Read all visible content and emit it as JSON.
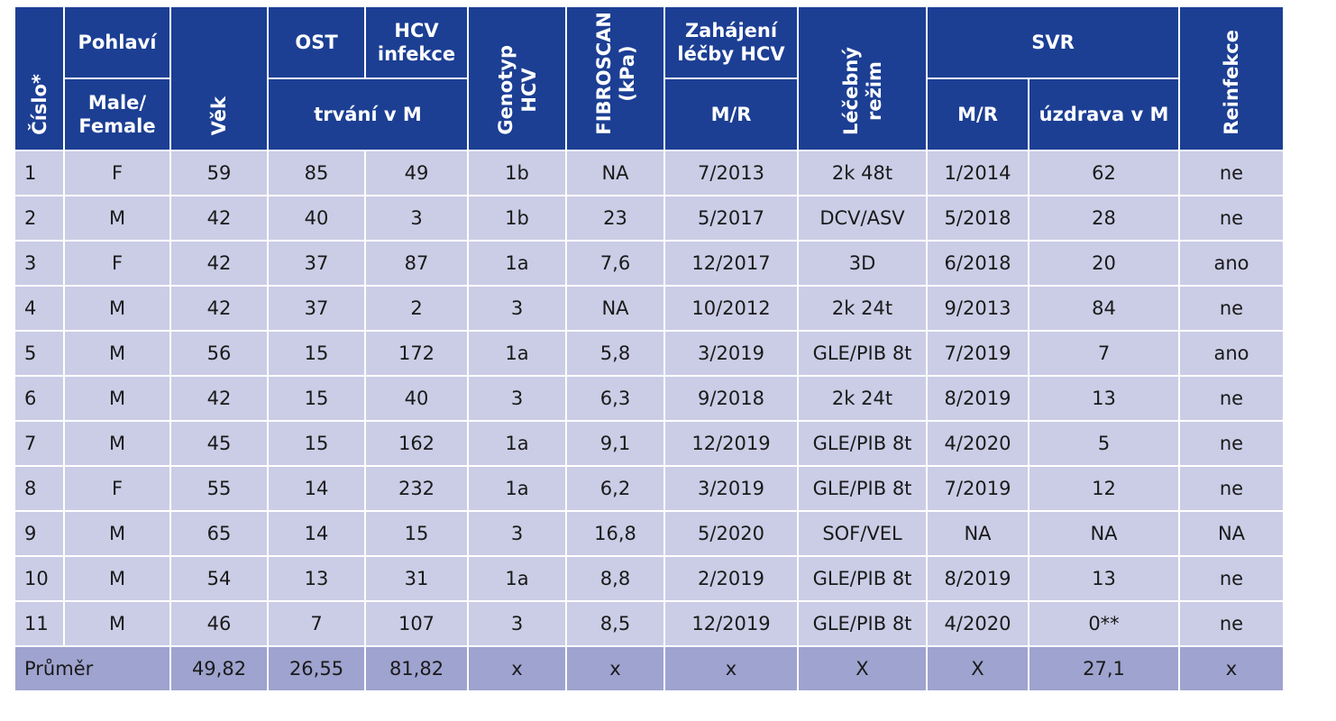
{
  "header": {
    "cislo": "Číslo*",
    "pohlavi": "Pohlaví",
    "pohlavi_sub_1": "Male/",
    "pohlavi_sub_2": "Female",
    "vek": "Věk",
    "ost": "OST",
    "hcv_1": "HCV",
    "hcv_2": "infekce",
    "trvani": "trvání v M",
    "genotyp_1": "Genotyp",
    "genotyp_2": "HCV",
    "fibroscan_1": "FIBROSCAN",
    "fibroscan_2": "(kPa)",
    "zahajeni_1": "Zahájení",
    "zahajeni_2": "léčby HCV",
    "zahajeni_sub": "M/R",
    "rezim_1": "Léčebný",
    "rezim_2": "režim",
    "svr": "SVR",
    "svr_sub_1": "M/R",
    "svr_sub_2": "úzdrava v M",
    "reinfekce": "Reinfekce"
  },
  "rows": [
    [
      "1",
      "F",
      "59",
      "85",
      "49",
      "1b",
      "NA",
      "7/2013",
      "2k 48t",
      "1/2014",
      "62",
      "ne"
    ],
    [
      "2",
      "M",
      "42",
      "40",
      "3",
      "1b",
      "23",
      "5/2017",
      "DCV/ASV",
      "5/2018",
      "28",
      "ne"
    ],
    [
      "3",
      "F",
      "42",
      "37",
      "87",
      "1a",
      "7,6",
      "12/2017",
      "3D",
      "6/2018",
      "20",
      "ano"
    ],
    [
      "4",
      "M",
      "42",
      "37",
      "2",
      "3",
      "NA",
      "10/2012",
      "2k 24t",
      "9/2013",
      "84",
      "ne"
    ],
    [
      "5",
      "M",
      "56",
      "15",
      "172",
      "1a",
      "5,8",
      "3/2019",
      "GLE/PIB 8t",
      "7/2019",
      "7",
      "ano"
    ],
    [
      "6",
      "M",
      "42",
      "15",
      "40",
      "3",
      "6,3",
      "9/2018",
      "2k 24t",
      "8/2019",
      "13",
      "ne"
    ],
    [
      "7",
      "M",
      "45",
      "15",
      "162",
      "1a",
      "9,1",
      "12/2019",
      "GLE/PIB 8t",
      "4/2020",
      "5",
      "ne"
    ],
    [
      "8",
      "F",
      "55",
      "14",
      "232",
      "1a",
      "6,2",
      "3/2019",
      "GLE/PIB 8t",
      "7/2019",
      "12",
      "ne"
    ],
    [
      "9",
      "M",
      "65",
      "14",
      "15",
      "3",
      "16,8",
      "5/2020",
      "SOF/VEL",
      "NA",
      "NA",
      "NA"
    ],
    [
      "10",
      "M",
      "54",
      "13",
      "31",
      "1a",
      "8,8",
      "2/2019",
      "GLE/PIB 8t",
      "8/2019",
      "13",
      "ne"
    ],
    [
      "11",
      "M",
      "46",
      "7",
      "107",
      "3",
      "8,5",
      "12/2019",
      "GLE/PIB 8t",
      "4/2020",
      "0**",
      "ne"
    ]
  ],
  "footer": {
    "label": "Průměr",
    "vek": "49,82",
    "ost": "26,55",
    "hcv": "81,82",
    "genotyp": "x",
    "fibroscan": "x",
    "zahajeni": "x",
    "rezim": "X",
    "svr_mr": "X",
    "svr_uzdrava": "27,1",
    "reinfekce": "x"
  },
  "colors": {
    "header_bg": "#1c3f94",
    "row_bg": "#cbcde6",
    "footer_bg": "#9ea3cf"
  }
}
